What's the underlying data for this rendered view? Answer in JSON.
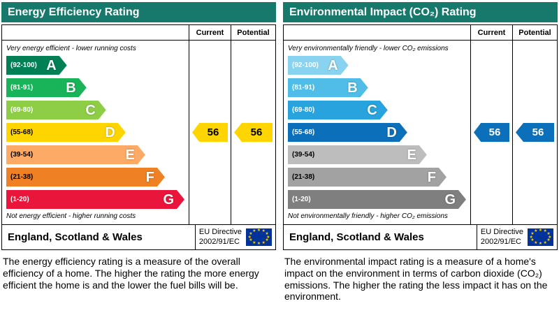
{
  "panels": [
    {
      "title": "Energy Efficiency Rating",
      "header_color": "#17796c",
      "columns": {
        "current": "Current",
        "potential": "Potential"
      },
      "top_note": "Very energy efficient - lower running costs",
      "bottom_note": "Not energy efficient - higher running costs",
      "bands": [
        {
          "letter": "A",
          "range": "(92-100)",
          "color": "#008054",
          "text": "#ffffff"
        },
        {
          "letter": "B",
          "range": "(81-91)",
          "color": "#19b459",
          "text": "#ffffff"
        },
        {
          "letter": "C",
          "range": "(69-80)",
          "color": "#8dce46",
          "text": "#ffffff"
        },
        {
          "letter": "D",
          "range": "(55-68)",
          "color": "#ffd500",
          "text": "#000000"
        },
        {
          "letter": "E",
          "range": "(39-54)",
          "color": "#fcaa65",
          "text": "#000000"
        },
        {
          "letter": "F",
          "range": "(21-38)",
          "color": "#ef8023",
          "text": "#000000"
        },
        {
          "letter": "G",
          "range": "(1-20)",
          "color": "#e9153b",
          "text": "#ffffff"
        }
      ],
      "current": {
        "value": "56",
        "color": "#ffd500",
        "text": "#000000"
      },
      "potential": {
        "value": "56",
        "color": "#ffd500",
        "text": "#000000"
      },
      "footer": {
        "region": "England, Scotland & Wales",
        "directive_line1": "EU Directive",
        "directive_line2": "2002/91/EC"
      },
      "description": "The energy efficiency rating is a measure of the overall efficiency of a home. The higher the rating the more energy efficient the home is and the lower the fuel bills will be."
    },
    {
      "title": "Environmental Impact (CO₂) Rating",
      "header_color": "#17796c",
      "columns": {
        "current": "Current",
        "potential": "Potential"
      },
      "top_note": "Very environmentally friendly - lower CO₂ emissions",
      "bottom_note": "Not environmentally friendly - higher CO₂ emissions",
      "bands": [
        {
          "letter": "A",
          "range": "(92-100)",
          "color": "#89d3f1",
          "text": "#ffffff"
        },
        {
          "letter": "B",
          "range": "(81-91)",
          "color": "#50bde8",
          "text": "#ffffff"
        },
        {
          "letter": "C",
          "range": "(69-80)",
          "color": "#28a3dd",
          "text": "#ffffff"
        },
        {
          "letter": "D",
          "range": "(55-68)",
          "color": "#0c6fba",
          "text": "#ffffff"
        },
        {
          "letter": "E",
          "range": "(39-54)",
          "color": "#bdbdbd",
          "text": "#000000"
        },
        {
          "letter": "F",
          "range": "(21-38)",
          "color": "#a2a2a2",
          "text": "#000000"
        },
        {
          "letter": "G",
          "range": "(1-20)",
          "color": "#7f7f7f",
          "text": "#ffffff"
        }
      ],
      "current": {
        "value": "56",
        "color": "#0c6fba",
        "text": "#ffffff"
      },
      "potential": {
        "value": "56",
        "color": "#0c6fba",
        "text": "#ffffff"
      },
      "footer": {
        "region": "England, Scotland & Wales",
        "directive_line1": "EU Directive",
        "directive_line2": "2002/91/EC"
      },
      "description": "The environmental impact rating is a measure of a home's impact on the environment in terms of carbon dioxide (CO₂) emissions. The higher the rating the less impact it has on the environment."
    }
  ],
  "eu_flag": {
    "background": "#003399",
    "star": "#ffcc00"
  },
  "chart_data": [
    {
      "type": "bar",
      "title": "Energy Efficiency Rating",
      "categories": [
        "A",
        "B",
        "C",
        "D",
        "E",
        "F",
        "G"
      ],
      "ranges": [
        "92-100",
        "81-91",
        "69-80",
        "55-68",
        "39-54",
        "21-38",
        "1-20"
      ],
      "series": [
        {
          "name": "Current",
          "value": 56,
          "band": "D"
        },
        {
          "name": "Potential",
          "value": 56,
          "band": "D"
        }
      ],
      "xlabel": "",
      "ylabel": "",
      "legend_position": "top-right-columns"
    },
    {
      "type": "bar",
      "title": "Environmental Impact (CO₂) Rating",
      "categories": [
        "A",
        "B",
        "C",
        "D",
        "E",
        "F",
        "G"
      ],
      "ranges": [
        "92-100",
        "81-91",
        "69-80",
        "55-68",
        "39-54",
        "21-38",
        "1-20"
      ],
      "series": [
        {
          "name": "Current",
          "value": 56,
          "band": "D"
        },
        {
          "name": "Potential",
          "value": 56,
          "band": "D"
        }
      ],
      "xlabel": "",
      "ylabel": "",
      "legend_position": "top-right-columns"
    }
  ]
}
